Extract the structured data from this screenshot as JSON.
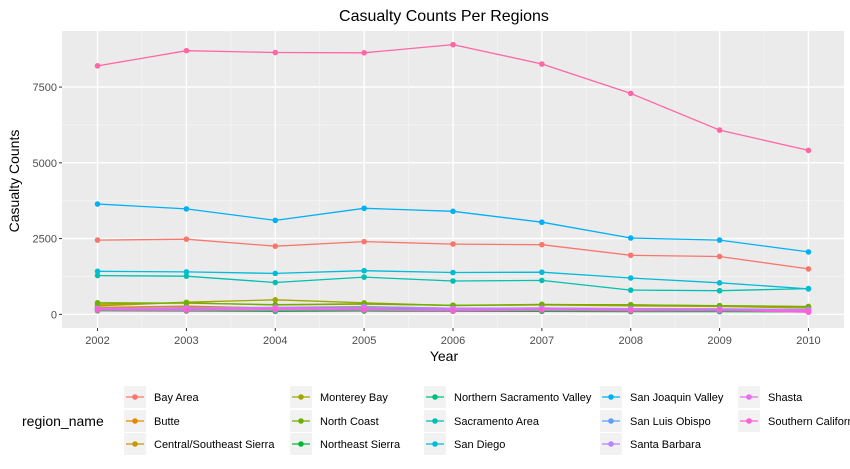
{
  "chart_data": {
    "type": "line",
    "title": "Casualty Counts Per Regions",
    "xlabel": "Year",
    "ylabel": "Casualty Counts",
    "x": [
      2002,
      2003,
      2004,
      2005,
      2006,
      2007,
      2008,
      2009,
      2010
    ],
    "x_tick_labels": [
      "2002",
      "2003",
      "2004",
      "2005",
      "2006",
      "2007",
      "2008",
      "2009",
      "2010"
    ],
    "xlim": [
      2001.6,
      2010.4
    ],
    "ylim": [
      -450,
      9350
    ],
    "y_ticks": [
      0,
      2500,
      5000,
      7500
    ],
    "y_tick_labels": [
      "0",
      "2500",
      "5000",
      "7500"
    ],
    "grid": true,
    "legend_title": "region_name",
    "legend_position": "bottom",
    "series": [
      {
        "name": "Bay Area",
        "color": "#F8766D",
        "values": [
          2450,
          2480,
          2250,
          2400,
          2320,
          2300,
          1950,
          1910,
          1500
        ]
      },
      {
        "name": "Butte",
        "color": "#E58700",
        "values": [
          230,
          270,
          210,
          250,
          200,
          210,
          180,
          180,
          140
        ]
      },
      {
        "name": "Central/Southeast Sierra",
        "color": "#C99800",
        "values": [
          330,
          380,
          310,
          340,
          300,
          310,
          280,
          260,
          210
        ]
      },
      {
        "name": "Monterey Bay",
        "color": "#A3A500",
        "values": [
          280,
          400,
          480,
          380,
          290,
          320,
          320,
          280,
          250
        ]
      },
      {
        "name": "North Coast",
        "color": "#6BB100",
        "values": [
          380,
          370,
          320,
          350,
          300,
          330,
          310,
          290,
          260
        ]
      },
      {
        "name": "Northeast Sierra",
        "color": "#00BA38",
        "values": [
          120,
          110,
          100,
          110,
          100,
          100,
          90,
          90,
          80
        ]
      },
      {
        "name": "Northern Sacramento Valley",
        "color": "#00BF7D",
        "values": [
          200,
          210,
          190,
          200,
          180,
          190,
          170,
          160,
          150
        ]
      },
      {
        "name": "Sacramento Area",
        "color": "#00C0AF",
        "values": [
          1280,
          1260,
          1050,
          1230,
          1100,
          1120,
          800,
          780,
          850
        ]
      },
      {
        "name": "San Diego",
        "color": "#00BCD8",
        "values": [
          1420,
          1400,
          1350,
          1440,
          1380,
          1390,
          1200,
          1040,
          840
        ]
      },
      {
        "name": "San Joaquin Valley",
        "color": "#00B0F6",
        "values": [
          3640,
          3480,
          3100,
          3500,
          3400,
          3040,
          2520,
          2450,
          2060
        ]
      },
      {
        "name": "San Luis Obispo",
        "color": "#619CFF",
        "values": [
          150,
          160,
          140,
          160,
          140,
          150,
          130,
          120,
          110
        ]
      },
      {
        "name": "Santa Barbara",
        "color": "#B983FF",
        "values": [
          200,
          220,
          230,
          260,
          200,
          210,
          190,
          180,
          160
        ]
      },
      {
        "name": "Shasta",
        "color": "#E76BF3",
        "values": [
          170,
          180,
          200,
          190,
          160,
          180,
          150,
          140,
          120
        ]
      },
      {
        "name": "Southern California",
        "color": "#FD61D1",
        "values": [
          140,
          130,
          150,
          140,
          110,
          140,
          120,
          130,
          70
        ]
      },
      {
        "name": "",
        "color": "#FF67A4",
        "values": [
          8200,
          8700,
          8640,
          8630,
          8900,
          8260,
          7290,
          6080,
          5410
        ]
      }
    ]
  }
}
